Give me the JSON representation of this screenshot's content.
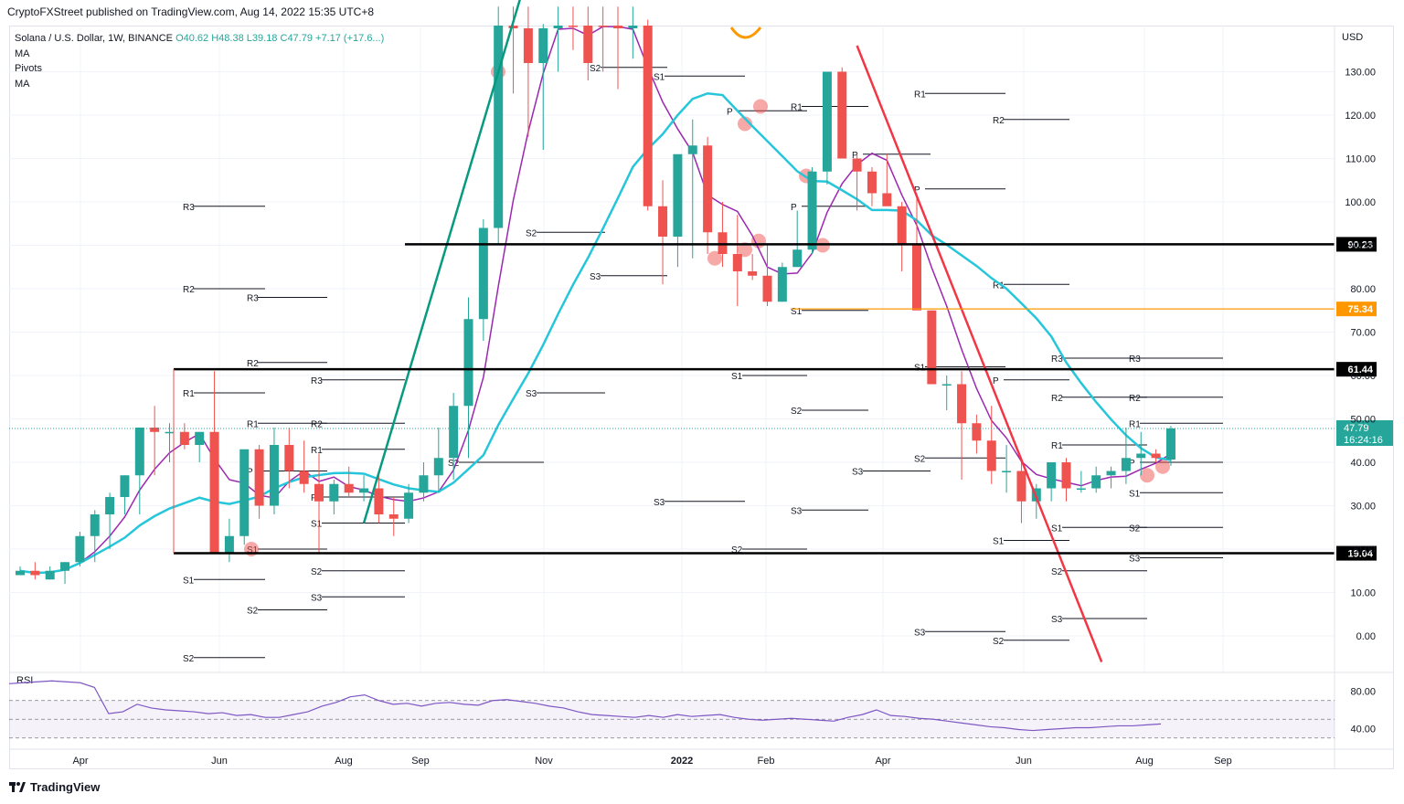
{
  "header": {
    "published": "CryptoFXStreet published on TradingView.com, Aug 14, 2022 15:35 UTC+8"
  },
  "legend": {
    "symbol": "Solana / U.S. Dollar, 1W, BINANCE",
    "ohlc": {
      "o": "O40.62",
      "h": "H48.38",
      "l": "L39.18",
      "c": "C47.79",
      "chg": "+7.17 (+17.6...)"
    },
    "indicators": [
      "MA",
      "Pivots",
      "MA"
    ]
  },
  "footer": {
    "logo_text": "TradingView"
  },
  "colors": {
    "up": "#26a69a",
    "down": "#ef5350",
    "ma_fast": "#9c27b0",
    "ma_slow": "#26c6da",
    "trend_green": "#089981",
    "trend_red": "#f23645",
    "orange": "#ff9800",
    "rsi": "#7e57c2"
  },
  "chart_data": [
    {
      "type": "candlestick",
      "title": "Solana / U.S. Dollar, 1W, BINANCE",
      "currency": "USD",
      "ylim": [
        -7,
        145
      ],
      "y_ticks": [
        "0.00",
        "10.00",
        "20.00",
        "30.00",
        "40.00",
        "50.00",
        "60.00",
        "70.00",
        "80.00",
        "90.00",
        "100.00",
        "110.00",
        "120.00",
        "130.00"
      ],
      "x_ticks": [
        "Apr",
        "Jun",
        "Aug",
        "Sep",
        "Nov",
        "2022",
        "Feb",
        "Apr",
        "Jun",
        "Aug",
        "Sep"
      ],
      "candles": [
        [
          14,
          14,
          16,
          15
        ],
        [
          15,
          13,
          17,
          14
        ],
        [
          13,
          13,
          16,
          15
        ],
        [
          15,
          12,
          17,
          17
        ],
        [
          17,
          16,
          24,
          23
        ],
        [
          23,
          17,
          29,
          28
        ],
        [
          28,
          20,
          33,
          32
        ],
        [
          32,
          28,
          37,
          37
        ],
        [
          37,
          28,
          48,
          48
        ],
        [
          48,
          37,
          53,
          47
        ],
        [
          47,
          40,
          49,
          47
        ],
        [
          47,
          43,
          49,
          44
        ],
        [
          44,
          40,
          47,
          47
        ],
        [
          47,
          19,
          61,
          19
        ],
        [
          19,
          17,
          27,
          23
        ],
        [
          23,
          21,
          41,
          43
        ],
        [
          43,
          27,
          44,
          30
        ],
        [
          30,
          28,
          48,
          44
        ],
        [
          44,
          34,
          48,
          38
        ],
        [
          38,
          33,
          45,
          35
        ],
        [
          35,
          19,
          42,
          31
        ],
        [
          31,
          28,
          36,
          35
        ],
        [
          35,
          32,
          39,
          33
        ],
        [
          33,
          31,
          37,
          34
        ],
        [
          34,
          26,
          38,
          28
        ],
        [
          28,
          23,
          32,
          27
        ],
        [
          27,
          26,
          35,
          33
        ],
        [
          33,
          31,
          40,
          37
        ],
        [
          37,
          33,
          48,
          41
        ],
        [
          41,
          36,
          56,
          53
        ],
        [
          53,
          41,
          78,
          73
        ],
        [
          73,
          68,
          96,
          94
        ],
        [
          94,
          90,
          145,
          142
        ],
        [
          142,
          125,
          150,
          140
        ],
        [
          140,
          115,
          148,
          132
        ],
        [
          132,
          112,
          141,
          140
        ],
        [
          140,
          130,
          147,
          145
        ],
        [
          145,
          135,
          150,
          143
        ],
        [
          143,
          128,
          152,
          132
        ]
      ],
      "candles_2022": [
        [
          145,
          130,
          146,
          142
        ],
        [
          142,
          126,
          145,
          140
        ],
        [
          140,
          133,
          145,
          142
        ],
        [
          142,
          98,
          142,
          99
        ],
        [
          99,
          81,
          105,
          92
        ],
        [
          92,
          85,
          106,
          111
        ],
        [
          111,
          87,
          119,
          113
        ],
        [
          113,
          88,
          115,
          93
        ],
        [
          93,
          85,
          100,
          88
        ],
        [
          88,
          76,
          97,
          84
        ],
        [
          84,
          82,
          88,
          83
        ],
        [
          83,
          76,
          90,
          77
        ],
        [
          77,
          77,
          86,
          85
        ],
        [
          85,
          85,
          98,
          89
        ],
        [
          89,
          88,
          108,
          107
        ],
        [
          107,
          104,
          130,
          130
        ],
        [
          130,
          110,
          131,
          110
        ],
        [
          110,
          98,
          111,
          107
        ],
        [
          107,
          99,
          108,
          102
        ],
        [
          102,
          100,
          111,
          99
        ],
        [
          99,
          84,
          100,
          90
        ],
        [
          90,
          76,
          102,
          75
        ],
        [
          75,
          65,
          75,
          58
        ],
        [
          58,
          52,
          60,
          58
        ],
        [
          58,
          36,
          61,
          49
        ],
        [
          49,
          42,
          51,
          45
        ],
        [
          45,
          35,
          53,
          38
        ],
        [
          38,
          33,
          44,
          38
        ],
        [
          38,
          26,
          40,
          31
        ],
        [
          31,
          27,
          35,
          34
        ],
        [
          34,
          31,
          40,
          40
        ],
        [
          40,
          31,
          41,
          34
        ],
        [
          34,
          33,
          38,
          34
        ],
        [
          34,
          33,
          39,
          37
        ],
        [
          37,
          34,
          39,
          38
        ],
        [
          38,
          35,
          48,
          41
        ],
        [
          41,
          37,
          47,
          42
        ],
        [
          42,
          40,
          43,
          41
        ],
        [
          40.62,
          39.18,
          48.38,
          47.79
        ]
      ],
      "horizontal_levels": [
        {
          "label": "90.23",
          "value": 90.23,
          "color": "#000000"
        },
        {
          "label": "75.34",
          "value": 75.34,
          "color": "#ff9800"
        },
        {
          "label": "61.44",
          "value": 61.44,
          "color": "#000000"
        },
        {
          "label": "19.04",
          "value": 19.04,
          "color": "#000000"
        }
      ],
      "last_price": {
        "value": 47.79,
        "label": "47.79",
        "countdown": "16:24:16"
      },
      "pivot_labels": [
        "R3",
        "R2",
        "R1",
        "P",
        "S1",
        "S2",
        "S3"
      ]
    },
    {
      "type": "line",
      "title": "RSI",
      "y_ticks": [
        "40.00",
        "80.00"
      ],
      "ylim": [
        20,
        100
      ],
      "band": [
        30,
        70
      ],
      "values": [
        88,
        89,
        90,
        91,
        90,
        89,
        84,
        56,
        58,
        66,
        62,
        60,
        59,
        58,
        56,
        57,
        54,
        55,
        52,
        52,
        55,
        58,
        64,
        68,
        74,
        76,
        70,
        66,
        67,
        64,
        67,
        68,
        66,
        65,
        70,
        71,
        69,
        67,
        64,
        62,
        58,
        55,
        54,
        53,
        52,
        54,
        52,
        55,
        53,
        54,
        55,
        52,
        50,
        49,
        50,
        51,
        50,
        49,
        48,
        52,
        55,
        60,
        54,
        53,
        51,
        50,
        48,
        46,
        44,
        42,
        41,
        39,
        38,
        39,
        40,
        41,
        41,
        42,
        43,
        43,
        44,
        45
      ]
    }
  ]
}
